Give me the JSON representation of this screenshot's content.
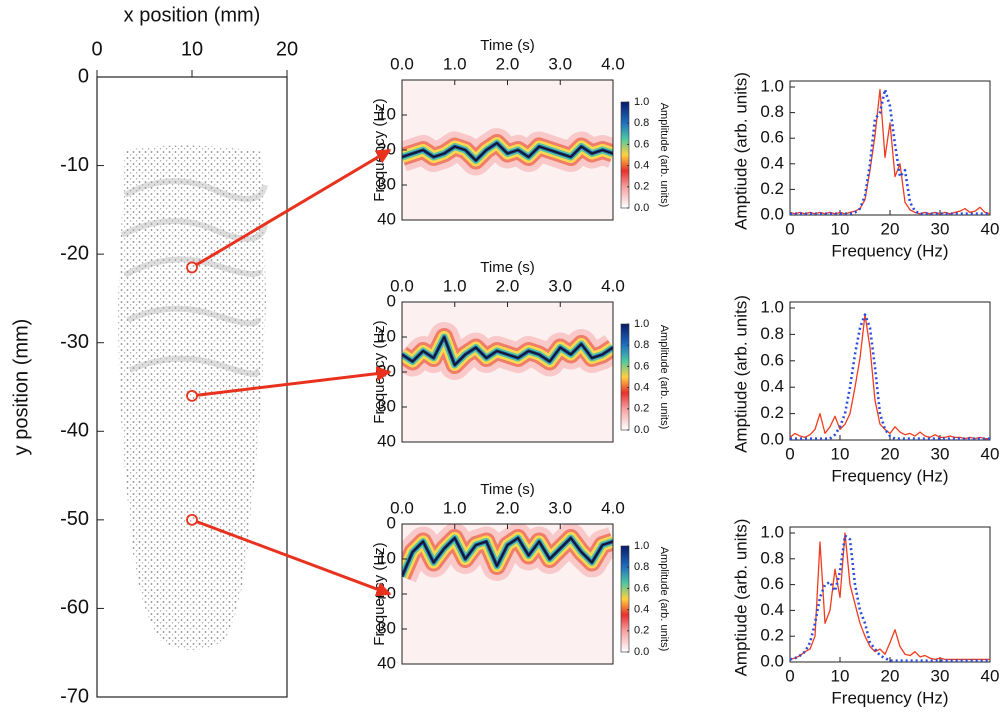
{
  "chart_data": [
    {
      "type": "image",
      "xlabel": "x position (mm)",
      "ylabel": "y position (mm)",
      "xlim": [
        0,
        20
      ],
      "ylim": [
        -70,
        0
      ],
      "xticks": [
        0,
        10,
        20
      ],
      "yticks": [
        0,
        -10,
        -20,
        -30,
        -40,
        -50,
        -60,
        -70
      ],
      "points": {
        "x": [
          10,
          10,
          10
        ],
        "y": [
          -21.5,
          -36,
          -50
        ],
        "color": "#e8321e"
      }
    },
    {
      "type": "spectrogram",
      "xlabel": "Time (s)",
      "ylabel": "Frequency (Hz)",
      "xlim": [
        0,
        4
      ],
      "ylim": [
        0,
        40
      ],
      "y_inverted": true,
      "xticks": [
        {
          "value": 0,
          "label": "0.0"
        },
        {
          "value": 1,
          "label": "1.0"
        },
        {
          "value": 2,
          "label": "2.0"
        },
        {
          "value": 3,
          "label": "3.0"
        },
        {
          "value": 4,
          "label": "4.0"
        }
      ],
      "yticks": [
        10,
        20,
        30,
        40
      ],
      "x": [
        0,
        0.2,
        0.4,
        0.6,
        0.8,
        1,
        1.2,
        1.4,
        1.6,
        1.8,
        2,
        2.2,
        2.4,
        2.6,
        2.8,
        3,
        3.2,
        3.4,
        3.6,
        3.8,
        4
      ],
      "values": [
        22,
        21,
        20,
        22,
        21,
        19,
        20,
        23,
        20,
        18,
        21,
        20,
        22,
        19,
        20,
        21,
        22,
        19,
        21,
        20,
        21
      ],
      "color": "#111111",
      "colorbar": {
        "label": "Amplitude (arb. units)",
        "lim": [
          0,
          1
        ],
        "ticks": [
          {
            "value": 0,
            "label": "0.0"
          },
          0.2,
          0.4,
          0.6,
          0.8,
          {
            "value": 1,
            "label": "1.0"
          }
        ]
      }
    },
    {
      "type": "spectrogram",
      "xlabel": "Time (s)",
      "ylabel": "Frequency (Hz)",
      "xlim": [
        0,
        4
      ],
      "ylim": [
        0,
        40
      ],
      "y_inverted": true,
      "xticks": [
        {
          "value": 0,
          "label": "0.0"
        },
        {
          "value": 1,
          "label": "1.0"
        },
        {
          "value": 2,
          "label": "2.0"
        },
        {
          "value": 3,
          "label": "3.0"
        },
        {
          "value": 4,
          "label": "4.0"
        }
      ],
      "yticks": [
        0,
        10,
        20,
        30,
        40
      ],
      "x": [
        0,
        0.2,
        0.4,
        0.6,
        0.8,
        1,
        1.2,
        1.4,
        1.6,
        1.8,
        2,
        2.2,
        2.4,
        2.6,
        2.8,
        3,
        3.2,
        3.4,
        3.6,
        3.8,
        4
      ],
      "values": [
        15,
        17,
        14,
        16,
        10,
        18,
        15,
        13,
        16,
        14,
        15,
        16,
        14,
        15,
        17,
        13,
        15,
        12,
        16,
        15,
        13
      ],
      "color": "#111111",
      "colorbar": {
        "label": "Amplitude (arb. units)",
        "lim": [
          0,
          1
        ],
        "ticks": [
          {
            "value": 0,
            "label": "0.0"
          },
          0.2,
          0.4,
          0.6,
          0.8,
          {
            "value": 1,
            "label": "1.0"
          }
        ]
      }
    },
    {
      "type": "spectrogram",
      "xlabel": "Time (s)",
      "ylabel": "Frequency (Hz)",
      "xlim": [
        0,
        4
      ],
      "ylim": [
        0,
        40
      ],
      "y_inverted": true,
      "xticks": [
        {
          "value": 0,
          "label": "0.0"
        },
        {
          "value": 1,
          "label": "1.0"
        },
        {
          "value": 2,
          "label": "2.0"
        },
        {
          "value": 3,
          "label": "3.0"
        },
        {
          "value": 4,
          "label": "4.0"
        }
      ],
      "yticks": [
        0,
        10,
        20,
        30,
        40
      ],
      "x": [
        0,
        0.2,
        0.4,
        0.6,
        0.8,
        1,
        1.2,
        1.4,
        1.6,
        1.8,
        2,
        2.2,
        2.4,
        2.6,
        2.8,
        3,
        3.2,
        3.4,
        3.6,
        3.8,
        4
      ],
      "values": [
        15,
        8,
        5,
        11,
        7,
        4,
        10,
        6,
        5,
        12,
        6,
        4,
        9,
        5,
        10,
        7,
        4,
        8,
        11,
        6,
        5
      ],
      "color": "#111111",
      "colorbar": {
        "label": "Amplitude (arb. units)",
        "lim": [
          0,
          1
        ],
        "ticks": [
          {
            "value": 0,
            "label": "0.0"
          },
          0.2,
          0.4,
          0.6,
          0.8,
          {
            "value": 1,
            "label": "1.0"
          }
        ]
      }
    },
    {
      "type": "line",
      "xlabel": "Frequency (Hz)",
      "ylabel": "Amptiude (arb. units)",
      "xlim": [
        0,
        40
      ],
      "ylim": [
        0,
        1
      ],
      "xticks": [
        0,
        10,
        20,
        30,
        40
      ],
      "yticks": [
        {
          "value": 0,
          "label": "0.0"
        },
        0.2,
        0.4,
        0.6,
        0.8,
        {
          "value": 1,
          "label": "1.0"
        }
      ],
      "x": [
        0,
        1,
        2,
        3,
        4,
        5,
        6,
        7,
        8,
        9,
        10,
        11,
        12,
        13,
        14,
        15,
        16,
        17,
        18,
        19,
        20,
        21,
        22,
        23,
        24,
        25,
        26,
        27,
        28,
        29,
        30,
        31,
        32,
        33,
        34,
        35,
        36,
        37,
        38,
        39,
        40
      ],
      "series": [
        {
          "color": "#f03c1e",
          "style": "solid",
          "values": [
            0.02,
            0.01,
            0.02,
            0.01,
            0.02,
            0.01,
            0.02,
            0.01,
            0.02,
            0.01,
            0.02,
            0.01,
            0.02,
            0.03,
            0.05,
            0.12,
            0.35,
            0.62,
            0.98,
            0.45,
            0.72,
            0.3,
            0.4,
            0.1,
            0.04,
            0.02,
            0.01,
            0.02,
            0.01,
            0.02,
            0.01,
            0.02,
            0.01,
            0.02,
            0.03,
            0.05,
            0.02,
            0.03,
            0.06,
            0.02,
            0.01
          ]
        },
        {
          "color": "#2a4de0",
          "style": "dotted",
          "values": [
            0.01,
            0.01,
            0.01,
            0.01,
            0.01,
            0.01,
            0.01,
            0.01,
            0.01,
            0.01,
            0.01,
            0.01,
            0.01,
            0.02,
            0.05,
            0.15,
            0.4,
            0.75,
            0.8,
            0.98,
            0.85,
            0.55,
            0.3,
            0.35,
            0.1,
            0.03,
            0.01,
            0.01,
            0.01,
            0.01,
            0.01,
            0.01,
            0.01,
            0.01,
            0.01,
            0.01,
            0.01,
            0.01,
            0.01,
            0.01,
            0.01
          ]
        }
      ]
    },
    {
      "type": "line",
      "xlabel": "Frequency (Hz)",
      "ylabel": "Amptiude (arb. units)",
      "xlim": [
        0,
        40
      ],
      "ylim": [
        0,
        1
      ],
      "xticks": [
        0,
        10,
        20,
        30,
        40
      ],
      "yticks": [
        {
          "value": 0,
          "label": "0.0"
        },
        0.2,
        0.4,
        0.6,
        0.8,
        {
          "value": 1,
          "label": "1.0"
        }
      ],
      "x": [
        0,
        1,
        2,
        3,
        4,
        5,
        6,
        7,
        8,
        9,
        10,
        11,
        12,
        13,
        14,
        15,
        16,
        17,
        18,
        19,
        20,
        21,
        22,
        23,
        24,
        25,
        26,
        27,
        28,
        29,
        30,
        31,
        32,
        33,
        34,
        35,
        36,
        37,
        38,
        39,
        40
      ],
      "series": [
        {
          "color": "#f03c1e",
          "style": "solid",
          "values": [
            0.02,
            0.05,
            0.03,
            0.02,
            0.04,
            0.08,
            0.2,
            0.05,
            0.1,
            0.18,
            0.08,
            0.12,
            0.2,
            0.4,
            0.62,
            0.95,
            0.7,
            0.3,
            0.12,
            0.08,
            0.05,
            0.1,
            0.06,
            0.04,
            0.05,
            0.03,
            0.06,
            0.03,
            0.02,
            0.04,
            0.02,
            0.02,
            0.03,
            0.02,
            0.02,
            0.01,
            0.02,
            0.01,
            0.02,
            0.01,
            0.01
          ]
        },
        {
          "color": "#2a4de0",
          "style": "dotted",
          "values": [
            0.01,
            0.01,
            0.01,
            0.01,
            0.01,
            0.01,
            0.01,
            0.01,
            0.01,
            0.04,
            0.1,
            0.2,
            0.4,
            0.65,
            0.85,
            0.95,
            0.85,
            0.55,
            0.2,
            0.08,
            0.03,
            0.01,
            0.01,
            0.01,
            0.01,
            0.01,
            0.01,
            0.01,
            0.01,
            0.01,
            0.01,
            0.01,
            0.01,
            0.01,
            0.01,
            0.01,
            0.01,
            0.01,
            0.01,
            0.01,
            0.01
          ]
        }
      ]
    },
    {
      "type": "line",
      "xlabel": "Frequency (Hz)",
      "ylabel": "Amptiude (arb. units)",
      "xlim": [
        0,
        40
      ],
      "ylim": [
        0,
        1
      ],
      "xticks": [
        0,
        10,
        20,
        30,
        40
      ],
      "yticks": [
        {
          "value": 0,
          "label": "0.0"
        },
        0.2,
        0.4,
        0.6,
        0.8,
        {
          "value": 1,
          "label": "1.0"
        }
      ],
      "x": [
        0,
        1,
        2,
        3,
        4,
        5,
        6,
        7,
        8,
        9,
        10,
        11,
        12,
        13,
        14,
        15,
        16,
        17,
        18,
        19,
        20,
        21,
        22,
        23,
        24,
        25,
        26,
        27,
        28,
        29,
        30,
        31,
        32,
        33,
        34,
        35,
        36,
        37,
        38,
        39,
        40
      ],
      "series": [
        {
          "color": "#f03c1e",
          "style": "solid",
          "values": [
            0.02,
            0.03,
            0.05,
            0.08,
            0.1,
            0.2,
            0.93,
            0.3,
            0.4,
            0.72,
            0.5,
            1.0,
            0.6,
            0.45,
            0.3,
            0.2,
            0.12,
            0.08,
            0.1,
            0.06,
            0.15,
            0.25,
            0.12,
            0.06,
            0.05,
            0.08,
            0.04,
            0.05,
            0.03,
            0.02,
            0.03,
            0.02,
            0.02,
            0.02,
            0.02,
            0.02,
            0.02,
            0.02,
            0.02,
            0.02,
            0.02
          ]
        },
        {
          "color": "#2a4de0",
          "style": "dotted",
          "values": [
            0.02,
            0.03,
            0.05,
            0.08,
            0.15,
            0.3,
            0.5,
            0.6,
            0.62,
            0.55,
            0.7,
            0.98,
            0.95,
            0.6,
            0.4,
            0.3,
            0.15,
            0.1,
            0.05,
            0.03,
            0.01,
            0.01,
            0.01,
            0.01,
            0.01,
            0.01,
            0.01,
            0.01,
            0.01,
            0.01,
            0.01,
            0.01,
            0.01,
            0.01,
            0.01,
            0.01,
            0.01,
            0.01,
            0.01,
            0.01,
            0.01
          ]
        }
      ]
    }
  ]
}
